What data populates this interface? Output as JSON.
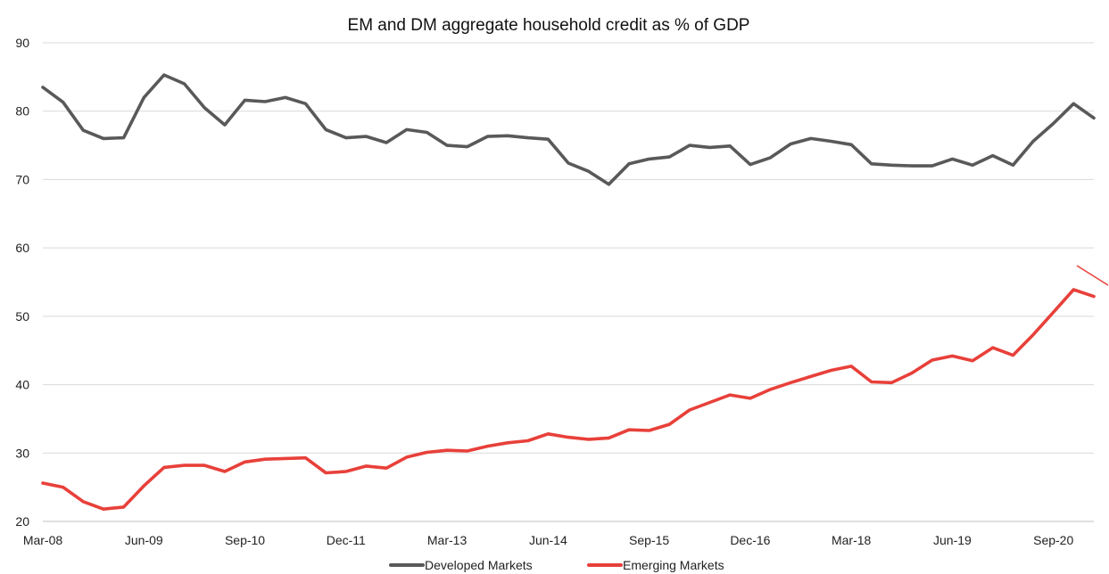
{
  "chart_data": {
    "type": "line",
    "title": "EM and DM aggregate household credit as % of GDP",
    "xlabel": "",
    "ylabel": "",
    "ylim": [
      20,
      90
    ],
    "y_ticks": [
      20,
      30,
      40,
      50,
      60,
      70,
      80,
      90
    ],
    "grid": true,
    "legend_position": "bottom",
    "x": [
      "Mar-08",
      "Jun-08",
      "Sep-08",
      "Dec-08",
      "Mar-09",
      "Jun-09",
      "Sep-09",
      "Dec-09",
      "Mar-10",
      "Jun-10",
      "Sep-10",
      "Dec-10",
      "Mar-11",
      "Jun-11",
      "Sep-11",
      "Dec-11",
      "Mar-12",
      "Jun-12",
      "Sep-12",
      "Dec-12",
      "Mar-13",
      "Jun-13",
      "Sep-13",
      "Dec-13",
      "Mar-14",
      "Jun-14",
      "Sep-14",
      "Dec-14",
      "Mar-15",
      "Jun-15",
      "Sep-15",
      "Dec-15",
      "Mar-16",
      "Jun-16",
      "Sep-16",
      "Dec-16",
      "Mar-17",
      "Jun-17",
      "Sep-17",
      "Dec-17",
      "Mar-18",
      "Jun-18",
      "Sep-18",
      "Dec-18",
      "Mar-19",
      "Jun-19",
      "Sep-19",
      "Dec-19",
      "Mar-20",
      "Jun-20",
      "Sep-20",
      "Dec-20",
      "Mar-21"
    ],
    "x_tick_labels": [
      "Mar-08",
      "Jun-09",
      "Sep-10",
      "Dec-11",
      "Mar-13",
      "Jun-14",
      "Sep-15",
      "Dec-16",
      "Mar-18",
      "Jun-19",
      "Sep-20"
    ],
    "series": [
      {
        "name": "Developed Markets",
        "color": "#595959",
        "values": [
          83.5,
          81.3,
          77.2,
          76.0,
          76.1,
          82.0,
          85.3,
          84.0,
          80.5,
          78.0,
          81.6,
          81.4,
          82.0,
          81.1,
          77.3,
          76.1,
          76.3,
          75.4,
          77.3,
          76.9,
          75.0,
          74.8,
          76.3,
          76.4,
          76.1,
          75.9,
          72.4,
          71.2,
          69.3,
          72.3,
          73.0,
          73.3,
          75.0,
          74.7,
          74.9,
          72.2,
          73.2,
          75.2,
          76.0,
          75.6,
          75.1,
          72.3,
          72.1,
          72.0,
          72.0,
          73.0,
          72.1,
          73.5,
          72.1,
          75.6,
          78.2,
          81.1,
          79.0
        ]
      },
      {
        "name": "Emerging Markets",
        "color": "#e8403a",
        "values": [
          25.6,
          25.0,
          22.9,
          21.8,
          22.1,
          25.2,
          27.9,
          28.2,
          28.2,
          27.3,
          28.7,
          29.1,
          29.2,
          29.3,
          27.1,
          27.3,
          28.1,
          27.8,
          29.4,
          30.1,
          30.4,
          30.3,
          31.0,
          31.5,
          31.8,
          32.8,
          32.3,
          32.0,
          32.2,
          33.4,
          33.3,
          34.2,
          36.3,
          37.4,
          38.5,
          38.0,
          39.3,
          40.3,
          41.2,
          42.1,
          42.7,
          40.4,
          40.3,
          41.7,
          43.6,
          44.2,
          43.5,
          45.4,
          44.3,
          47.3,
          50.6,
          53.9,
          52.9
        ]
      }
    ]
  }
}
